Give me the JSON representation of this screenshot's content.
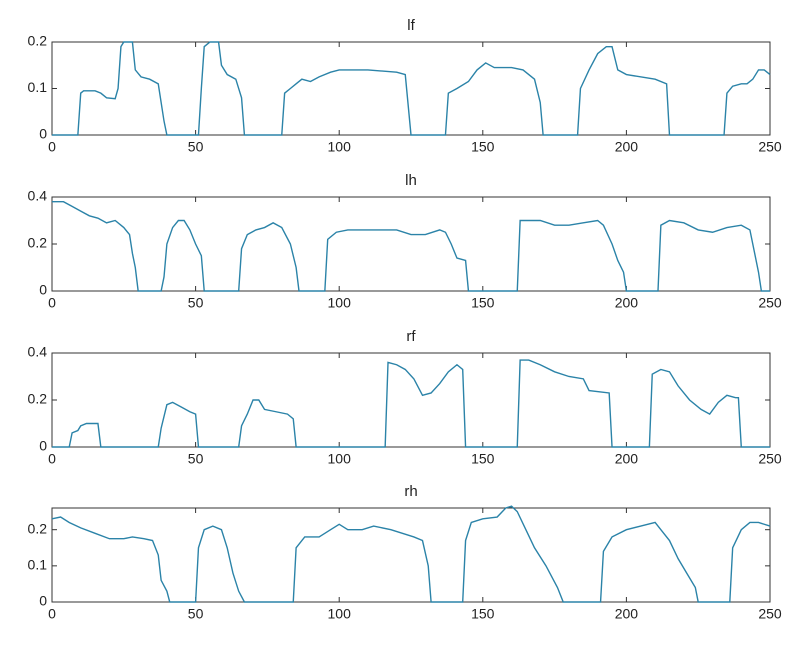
{
  "chart_data": [
    {
      "type": "line",
      "title": "lf",
      "color": "#2b83a8",
      "xlim": [
        0,
        250
      ],
      "xticks": [
        0,
        50,
        100,
        150,
        200,
        250
      ],
      "ylim": [
        0,
        0.2
      ],
      "yticks": [
        0,
        0.1,
        0.2
      ],
      "x": [
        0,
        9,
        10,
        11,
        15,
        17,
        19,
        22,
        23,
        24,
        25,
        28,
        29,
        31,
        34,
        37,
        39,
        40,
        51,
        52,
        53,
        55,
        58,
        59,
        61,
        64,
        66,
        67,
        80,
        81,
        83,
        85,
        87,
        90,
        93,
        97,
        100,
        110,
        120,
        123,
        125,
        137,
        138,
        141,
        145,
        148,
        151,
        154,
        160,
        164,
        168,
        170,
        171,
        183,
        184,
        187,
        190,
        193,
        195,
        197,
        200,
        210,
        214,
        215,
        234,
        235,
        237,
        240,
        242,
        244,
        246,
        248,
        250
      ],
      "values": [
        0,
        0,
        0.09,
        0.095,
        0.095,
        0.09,
        0.08,
        0.078,
        0.1,
        0.19,
        0.2,
        0.2,
        0.14,
        0.125,
        0.12,
        0.11,
        0.03,
        0,
        0,
        0.1,
        0.19,
        0.2,
        0.2,
        0.15,
        0.13,
        0.12,
        0.08,
        0,
        0,
        0.09,
        0.1,
        0.11,
        0.12,
        0.115,
        0.125,
        0.135,
        0.14,
        0.14,
        0.135,
        0.13,
        0,
        0,
        0.09,
        0.1,
        0.115,
        0.14,
        0.155,
        0.145,
        0.145,
        0.14,
        0.12,
        0.07,
        0,
        0,
        0.1,
        0.14,
        0.175,
        0.19,
        0.19,
        0.14,
        0.13,
        0.12,
        0.11,
        0,
        0,
        0.09,
        0.105,
        0.11,
        0.11,
        0.12,
        0.14,
        0.14,
        0.13
      ]
    },
    {
      "type": "line",
      "title": "lh",
      "color": "#2b83a8",
      "xlim": [
        0,
        250
      ],
      "xticks": [
        0,
        50,
        100,
        150,
        200,
        250
      ],
      "ylim": [
        0,
        0.4
      ],
      "yticks": [
        0,
        0.2,
        0.4
      ],
      "x": [
        0,
        4,
        7,
        10,
        13,
        16,
        19,
        22,
        25,
        27,
        28,
        29,
        30,
        38,
        39,
        40,
        42,
        44,
        46,
        48,
        50,
        52,
        53,
        65,
        66,
        68,
        71,
        74,
        77,
        80,
        83,
        85,
        86,
        95,
        96,
        99,
        103,
        110,
        120,
        125,
        130,
        135,
        137,
        139,
        141,
        144,
        145,
        162,
        163,
        170,
        175,
        180,
        185,
        190,
        192,
        195,
        197,
        199,
        200,
        211,
        212,
        215,
        220,
        225,
        230,
        235,
        240,
        243,
        246,
        247,
        250
      ],
      "values": [
        0.38,
        0.38,
        0.36,
        0.34,
        0.32,
        0.31,
        0.29,
        0.3,
        0.27,
        0.24,
        0.16,
        0.1,
        0,
        0,
        0.06,
        0.2,
        0.27,
        0.3,
        0.3,
        0.26,
        0.2,
        0.15,
        0,
        0,
        0.18,
        0.24,
        0.26,
        0.27,
        0.29,
        0.27,
        0.2,
        0.1,
        0,
        0,
        0.22,
        0.25,
        0.26,
        0.26,
        0.26,
        0.24,
        0.24,
        0.26,
        0.25,
        0.2,
        0.14,
        0.13,
        0,
        0,
        0.3,
        0.3,
        0.28,
        0.28,
        0.29,
        0.3,
        0.28,
        0.2,
        0.13,
        0.08,
        0,
        0,
        0.28,
        0.3,
        0.29,
        0.26,
        0.25,
        0.27,
        0.28,
        0.26,
        0.08,
        0,
        0
      ]
    },
    {
      "type": "line",
      "title": "rf",
      "color": "#2b83a8",
      "xlim": [
        0,
        250
      ],
      "xticks": [
        0,
        50,
        100,
        150,
        200,
        250
      ],
      "ylim": [
        0,
        0.4
      ],
      "yticks": [
        0,
        0.2,
        0.4
      ],
      "x": [
        0,
        6,
        7,
        9,
        10,
        12,
        16,
        17,
        37,
        38,
        40,
        42,
        45,
        48,
        50,
        51,
        65,
        66,
        68,
        70,
        72,
        74,
        78,
        82,
        84,
        85,
        116,
        117,
        120,
        123,
        126,
        129,
        132,
        135,
        138,
        141,
        143,
        144,
        162,
        163,
        166,
        170,
        175,
        180,
        185,
        187,
        194,
        195,
        208,
        209,
        212,
        215,
        218,
        222,
        226,
        229,
        232,
        235,
        238,
        239,
        240,
        250
      ],
      "values": [
        0,
        0,
        0.06,
        0.07,
        0.09,
        0.1,
        0.1,
        0,
        0,
        0.08,
        0.18,
        0.19,
        0.17,
        0.15,
        0.14,
        0,
        0,
        0.09,
        0.14,
        0.2,
        0.2,
        0.16,
        0.15,
        0.14,
        0.12,
        0,
        0,
        0.36,
        0.35,
        0.33,
        0.29,
        0.22,
        0.23,
        0.27,
        0.32,
        0.35,
        0.33,
        0,
        0,
        0.37,
        0.37,
        0.35,
        0.32,
        0.3,
        0.29,
        0.24,
        0.23,
        0,
        0,
        0.31,
        0.33,
        0.32,
        0.26,
        0.2,
        0.16,
        0.14,
        0.19,
        0.22,
        0.21,
        0.21,
        0,
        0
      ]
    },
    {
      "type": "line",
      "title": "rh",
      "color": "#2b83a8",
      "xlim": [
        0,
        250
      ],
      "xticks": [
        0,
        50,
        100,
        150,
        200,
        250
      ],
      "ylim": [
        0,
        0.26
      ],
      "yticks": [
        0,
        0.1,
        0.2
      ],
      "x": [
        0,
        3,
        6,
        10,
        15,
        20,
        25,
        28,
        32,
        35,
        37,
        38,
        40,
        41,
        50,
        51,
        53,
        56,
        59,
        61,
        63,
        65,
        67,
        84,
        85,
        88,
        93,
        97,
        100,
        103,
        108,
        112,
        118,
        122,
        126,
        129,
        131,
        132,
        143,
        144,
        146,
        150,
        155,
        158,
        160,
        162,
        165,
        168,
        172,
        176,
        178,
        191,
        192,
        195,
        200,
        205,
        210,
        212,
        215,
        218,
        221,
        224,
        225,
        236,
        237,
        240,
        243,
        246,
        250
      ],
      "values": [
        0.23,
        0.235,
        0.22,
        0.205,
        0.19,
        0.175,
        0.175,
        0.18,
        0.175,
        0.17,
        0.13,
        0.06,
        0.03,
        0,
        0,
        0.15,
        0.2,
        0.21,
        0.2,
        0.15,
        0.08,
        0.03,
        0,
        0,
        0.15,
        0.18,
        0.18,
        0.2,
        0.215,
        0.2,
        0.2,
        0.21,
        0.2,
        0.19,
        0.18,
        0.17,
        0.1,
        0,
        0,
        0.17,
        0.22,
        0.23,
        0.235,
        0.26,
        0.265,
        0.25,
        0.2,
        0.15,
        0.1,
        0.04,
        0,
        0,
        0.14,
        0.18,
        0.2,
        0.21,
        0.22,
        0.2,
        0.17,
        0.12,
        0.08,
        0.04,
        0,
        0,
        0.15,
        0.2,
        0.22,
        0.22,
        0.21
      ]
    }
  ]
}
